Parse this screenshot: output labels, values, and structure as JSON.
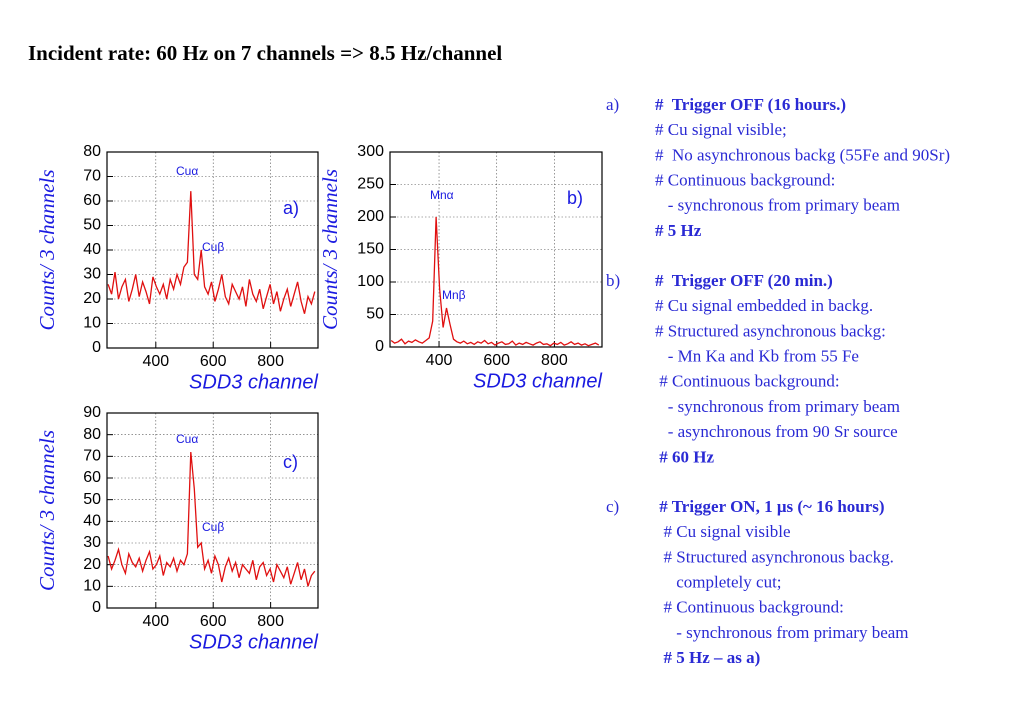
{
  "title": "Incident rate: 60 Hz on 7 channels => 8.5 Hz/channel",
  "chart_data": [
    {
      "type": "line",
      "panel_label": "a)",
      "x_label": "SDD3 channel",
      "y_label": "Counts/ 3 channels",
      "annotations": [
        "Cuα",
        "Cuβ"
      ],
      "color": "#e01010",
      "grid": true,
      "xlim": [
        230,
        965
      ],
      "xticks": [
        400,
        600,
        800
      ],
      "ylim": [
        0,
        80
      ],
      "yticks": [
        0,
        10,
        20,
        30,
        40,
        50,
        60,
        70,
        80
      ],
      "x": [
        234,
        246,
        258,
        270,
        282,
        294,
        306,
        318,
        330,
        342,
        354,
        366,
        378,
        390,
        402,
        414,
        426,
        438,
        450,
        462,
        474,
        486,
        498,
        510,
        522,
        534,
        546,
        558,
        570,
        582,
        594,
        606,
        618,
        630,
        642,
        654,
        666,
        678,
        690,
        702,
        714,
        726,
        738,
        750,
        762,
        774,
        786,
        798,
        810,
        822,
        834,
        846,
        858,
        870,
        882,
        894,
        906,
        918,
        930,
        942,
        954
      ],
      "values": [
        26,
        22,
        31,
        20,
        25,
        28,
        19,
        24,
        30,
        21,
        27,
        23,
        18,
        29,
        25,
        22,
        26,
        20,
        28,
        24,
        30,
        26,
        33,
        35,
        64,
        30,
        28,
        40,
        25,
        22,
        27,
        19,
        24,
        30,
        21,
        18,
        26,
        23,
        20,
        25,
        17,
        28,
        22,
        19,
        24,
        16,
        21,
        26,
        18,
        23,
        15,
        20,
        24,
        17,
        22,
        27,
        19,
        14,
        21,
        18,
        23
      ]
    },
    {
      "type": "line",
      "panel_label": "b)",
      "x_label": "SDD3 channel",
      "y_label": "Counts/ 3 channels",
      "annotations": [
        "Mnα",
        "Mnβ"
      ],
      "color": "#e01010",
      "grid": true,
      "xlim": [
        230,
        965
      ],
      "xticks": [
        400,
        600,
        800
      ],
      "ylim": [
        0,
        300
      ],
      "yticks": [
        0,
        50,
        100,
        150,
        200,
        250,
        300
      ],
      "x": [
        234,
        246,
        258,
        270,
        282,
        294,
        306,
        318,
        330,
        342,
        354,
        366,
        378,
        390,
        402,
        414,
        426,
        438,
        450,
        462,
        474,
        486,
        498,
        510,
        522,
        534,
        546,
        558,
        570,
        582,
        594,
        606,
        618,
        630,
        642,
        654,
        666,
        678,
        690,
        702,
        714,
        726,
        738,
        750,
        762,
        774,
        786,
        798,
        810,
        822,
        834,
        846,
        858,
        870,
        882,
        894,
        906,
        918,
        930,
        942,
        954
      ],
      "values": [
        10,
        6,
        8,
        12,
        5,
        9,
        7,
        11,
        8,
        6,
        10,
        14,
        40,
        200,
        90,
        30,
        60,
        35,
        12,
        8,
        6,
        9,
        5,
        7,
        4,
        8,
        6,
        10,
        5,
        7,
        3,
        6,
        8,
        4,
        5,
        9,
        3,
        6,
        4,
        7,
        5,
        3,
        6,
        8,
        4,
        5,
        2,
        6,
        4,
        7,
        3,
        5,
        8,
        4,
        6,
        3,
        5,
        2,
        4,
        6,
        3
      ]
    },
    {
      "type": "line",
      "panel_label": "c)",
      "x_label": "SDD3 channel",
      "y_label": "Counts/ 3 channels",
      "annotations": [
        "Cuα",
        "Cuβ"
      ],
      "color": "#e01010",
      "grid": true,
      "xlim": [
        230,
        965
      ],
      "xticks": [
        400,
        600,
        800
      ],
      "ylim": [
        0,
        90
      ],
      "yticks": [
        0,
        10,
        20,
        30,
        40,
        50,
        60,
        70,
        80,
        90
      ],
      "x": [
        234,
        246,
        258,
        270,
        282,
        294,
        306,
        318,
        330,
        342,
        354,
        366,
        378,
        390,
        402,
        414,
        426,
        438,
        450,
        462,
        474,
        486,
        498,
        510,
        522,
        534,
        546,
        558,
        570,
        582,
        594,
        606,
        618,
        630,
        642,
        654,
        666,
        678,
        690,
        702,
        714,
        726,
        738,
        750,
        762,
        774,
        786,
        798,
        810,
        822,
        834,
        846,
        858,
        870,
        882,
        894,
        906,
        918,
        930,
        942,
        954
      ],
      "values": [
        24,
        18,
        22,
        27,
        20,
        16,
        25,
        21,
        19,
        23,
        17,
        22,
        26,
        18,
        20,
        24,
        15,
        21,
        19,
        23,
        17,
        22,
        20,
        25,
        72,
        55,
        28,
        30,
        18,
        22,
        16,
        24,
        20,
        12,
        19,
        23,
        17,
        21,
        14,
        20,
        18,
        16,
        22,
        13,
        19,
        21,
        15,
        18,
        12,
        20,
        17,
        14,
        19,
        11,
        16,
        21,
        13,
        18,
        10,
        15,
        17
      ]
    }
  ],
  "notes": [
    {
      "label": "a)",
      "heading": "#  Trigger OFF (16 hours.)",
      "lines": [
        "# Cu signal visible;",
        "#  No asynchronous backg (55Fe and 90Sr)",
        "# Continuous background:",
        "   - synchronous from primary beam"
      ],
      "summary": "# 5 Hz"
    },
    {
      "label": "b)",
      "heading": "#  Trigger OFF (20 min.)",
      "lines": [
        "# Cu signal embedded in backg.",
        "# Structured asynchronous backg:",
        "   - Mn Ka and Kb from 55 Fe",
        " # Continuous background:",
        "   - synchronous from primary beam",
        "   - asynchronous from 90 Sr source"
      ],
      "summary": " # 60 Hz"
    },
    {
      "label": "c)",
      "heading": " # Trigger ON, 1 μs (~ 16 hours)",
      "lines": [
        "  # Cu signal visible",
        "  # Structured asynchronous backg.",
        "     completely cut;",
        "  # Continuous background:",
        "     - synchronous from primary beam"
      ],
      "summary": "  # 5 Hz – as a)"
    }
  ]
}
